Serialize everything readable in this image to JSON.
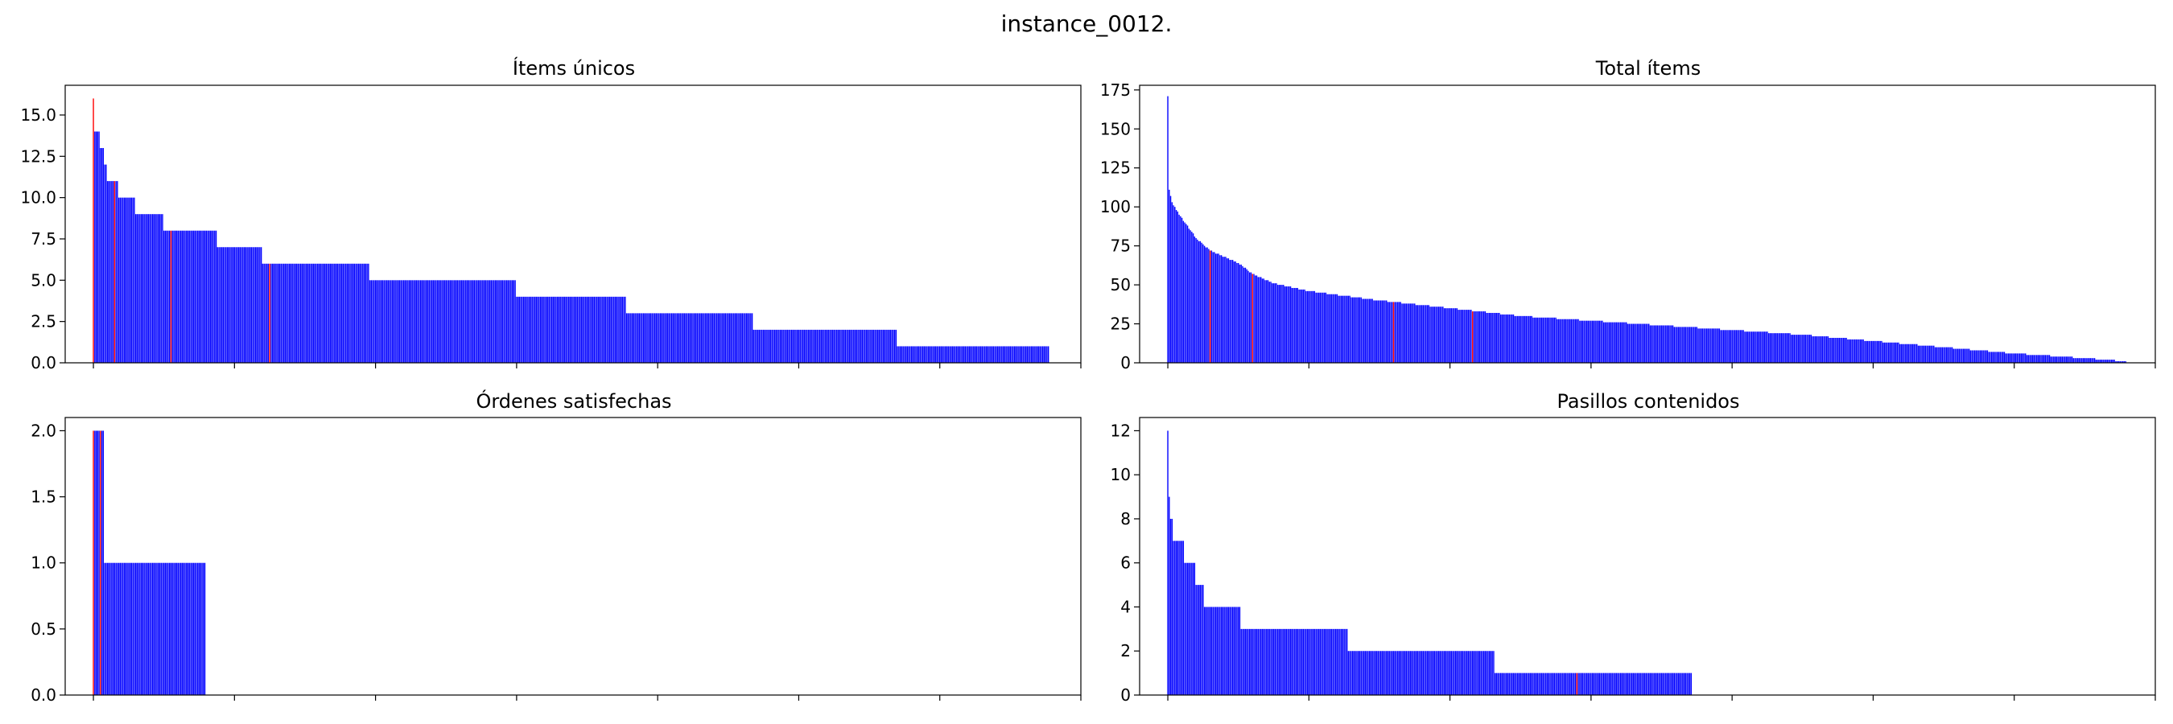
{
  "figure": {
    "title": "instance_0012."
  },
  "chart_data": [
    {
      "type": "bar",
      "title": "Ítems únicos",
      "ylim": [
        0,
        16.8
      ],
      "yticks": [
        "0.0",
        "2.5",
        "5.0",
        "7.5",
        "10.0",
        "12.5",
        "15.0"
      ],
      "ytick_values": [
        0,
        2.5,
        5,
        7.5,
        10,
        12.5,
        15
      ],
      "xlim": [
        -20,
        700
      ],
      "xticks": [
        0,
        100,
        200,
        300,
        400,
        500,
        600,
        700
      ],
      "bar_color": "#0000ff",
      "highlight_color": "#ff0000",
      "groups": [
        {
          "value": 16,
          "count": 1
        },
        {
          "value": 14,
          "count": 4
        },
        {
          "value": 13,
          "count": 3
        },
        {
          "value": 12,
          "count": 2
        },
        {
          "value": 11,
          "count": 8
        },
        {
          "value": 10,
          "count": 12
        },
        {
          "value": 9,
          "count": 20
        },
        {
          "value": 8,
          "count": 38
        },
        {
          "value": 7,
          "count": 32
        },
        {
          "value": 6,
          "count": 76
        },
        {
          "value": 5,
          "count": 104
        },
        {
          "value": 4,
          "count": 78
        },
        {
          "value": 3,
          "count": 90
        },
        {
          "value": 2,
          "count": 102
        },
        {
          "value": 1,
          "count": 108
        }
      ],
      "highlight_indices": [
        0,
        15,
        55,
        125
      ]
    },
    {
      "type": "bar",
      "title": "Total ítems",
      "ylim": [
        0,
        178
      ],
      "yticks": [
        "0",
        "25",
        "50",
        "75",
        "100",
        "125",
        "150",
        "175"
      ],
      "ytick_values": [
        0,
        25,
        50,
        75,
        100,
        125,
        150,
        175
      ],
      "xlim": [
        -20,
        700
      ],
      "xticks": [
        0,
        100,
        200,
        300,
        400,
        500,
        600,
        700
      ],
      "bar_color": "#0000ff",
      "highlight_color": "#ff0000",
      "curve": {
        "count": 680,
        "points": [
          [
            0,
            171
          ],
          [
            1,
            111
          ],
          [
            3,
            103
          ],
          [
            6,
            98
          ],
          [
            12,
            90
          ],
          [
            20,
            80
          ],
          [
            30,
            72
          ],
          [
            50,
            64
          ],
          [
            60,
            57
          ],
          [
            75,
            51
          ],
          [
            100,
            46
          ],
          [
            150,
            40
          ],
          [
            200,
            35
          ],
          [
            250,
            30
          ],
          [
            300,
            27
          ],
          [
            350,
            24
          ],
          [
            400,
            21
          ],
          [
            450,
            18
          ],
          [
            500,
            14
          ],
          [
            550,
            10
          ],
          [
            600,
            6
          ],
          [
            650,
            3
          ],
          [
            679,
            1
          ]
        ]
      },
      "highlight_indices": [
        30,
        60,
        160,
        216
      ]
    },
    {
      "type": "bar",
      "title": "Órdenes satisfechas",
      "ylim": [
        0,
        2.1
      ],
      "yticks": [
        "0.0",
        "0.5",
        "1.0",
        "1.5",
        "2.0"
      ],
      "ytick_values": [
        0,
        0.5,
        1,
        1.5,
        2
      ],
      "xlim": [
        -20,
        700
      ],
      "xticks": [
        0,
        100,
        200,
        300,
        400,
        500,
        600,
        700
      ],
      "bar_color": "#0000ff",
      "highlight_color": "#ff0000",
      "groups": [
        {
          "value": 2,
          "count": 8
        },
        {
          "value": 1,
          "count": 72
        }
      ],
      "highlight_indices": [
        0,
        5
      ]
    },
    {
      "type": "bar",
      "title": "Pasillos contenidos",
      "ylim": [
        0,
        12.6
      ],
      "yticks": [
        "0",
        "2",
        "4",
        "6",
        "8",
        "10",
        "12"
      ],
      "ytick_values": [
        0,
        2,
        4,
        6,
        8,
        10,
        12
      ],
      "xlim": [
        -20,
        700
      ],
      "xticks": [
        0,
        100,
        200,
        300,
        400,
        500,
        600,
        700
      ],
      "bar_color": "#0000ff",
      "highlight_color": "#ff0000",
      "groups": [
        {
          "value": 12,
          "count": 1
        },
        {
          "value": 9,
          "count": 1
        },
        {
          "value": 8,
          "count": 2
        },
        {
          "value": 7,
          "count": 8
        },
        {
          "value": 6,
          "count": 8
        },
        {
          "value": 5,
          "count": 6
        },
        {
          "value": 4,
          "count": 26
        },
        {
          "value": 3,
          "count": 76
        },
        {
          "value": 2,
          "count": 104
        },
        {
          "value": 1,
          "count": 140
        }
      ],
      "highlight_indices": [
        290
      ]
    }
  ]
}
